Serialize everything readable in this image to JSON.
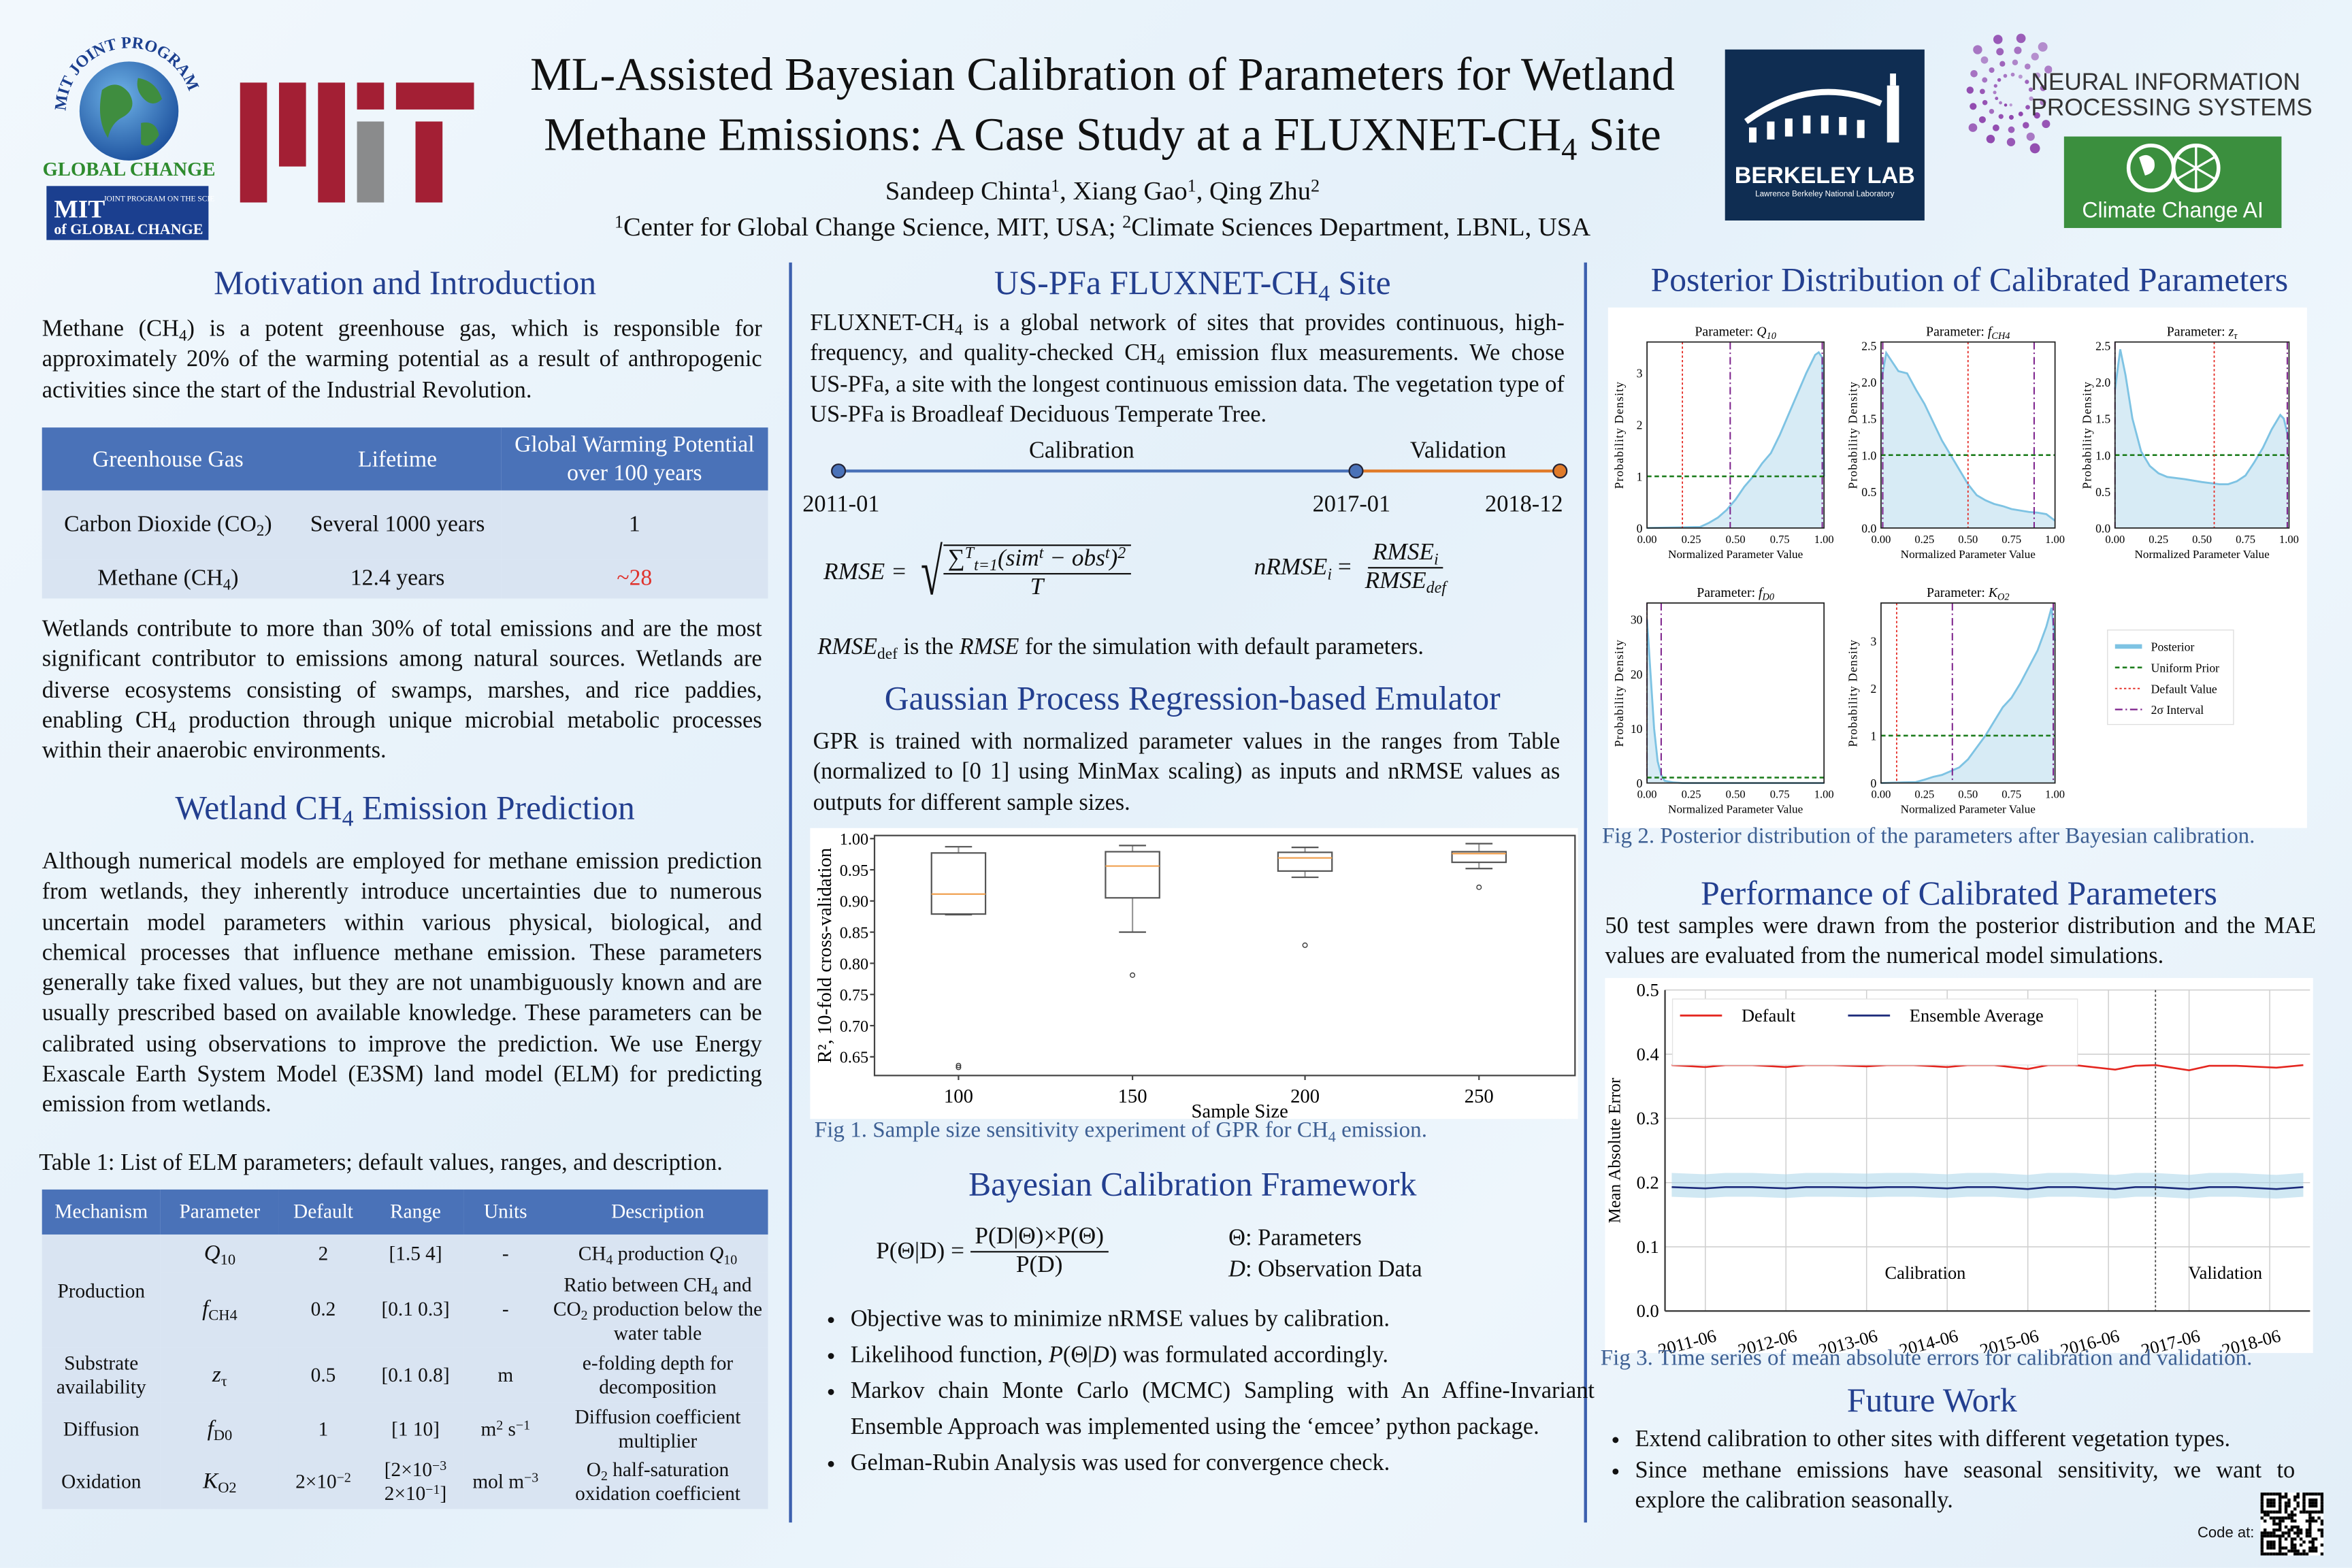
{
  "header": {
    "title_line1": "ML-Assisted Bayesian Calibration of Parameters for Wetland",
    "title_line2_pre": "Methane Emissions: A Case Study at a FLUXNET-CH",
    "title_line2_sub": "4",
    "title_line2_post": " Site",
    "authors": [
      "Sandeep Chinta",
      {
        "sup": "1"
      },
      ", Xiang Gao",
      {
        "sup": "1"
      },
      ", Qing Zhu",
      {
        "sup": "2"
      }
    ],
    "affiliations": [
      {
        "sup": "1"
      },
      "Center for Global Change Science, MIT, USA; ",
      {
        "sup": "2"
      },
      "Climate  Sciences Department, LBNL, USA"
    ],
    "logos": {
      "mit_joint_program_arc": "MIT JOINT PROGRAM",
      "global_change": "GLOBAL CHANGE",
      "mit_box_small": "JOINT PROGRAM ON THE SCIENCE AND POLICY",
      "mit_box_of": "of GLOBAL CHANGE",
      "mit_box_mit": "MIT",
      "berkeley_lab": "BERKELEY LAB",
      "berkeley_sub": "Lawrence Berkeley National Laboratory",
      "neurips_line1": "NEURAL INFORMATION",
      "neurips_line2": "PROCESSING SYSTEMS",
      "climate_change_ai": "Climate Change AI"
    },
    "colors": {
      "mit_red": "#a31f34",
      "mit_grey": "#8a8b8c",
      "berkeley_navy": "#0f2d52",
      "cca_green": "#3b8f3e",
      "neurips_purple": "#8e44ad"
    }
  },
  "motivation": {
    "heading": "Motivation and Introduction",
    "para1": [
      "Methane (CH",
      {
        "sub": "4"
      },
      ") is a potent greenhouse gas, which is responsible for approximately 20% of the warming potential as a result of anthropogenic activities since the start of the Industrial Revolution."
    ],
    "ghg_table": {
      "headers": [
        "Greenhouse Gas",
        "Lifetime",
        "Global Warming Potential over 100 years"
      ],
      "rows": [
        {
          "gas": [
            "Carbon Dioxide (CO",
            {
              "sub": "2"
            },
            ")"
          ],
          "lifetime": "Several 1000 years",
          "gwp": "1"
        },
        {
          "gas": [
            "Methane (CH",
            {
              "sub": "4"
            },
            ")"
          ],
          "lifetime": "12.4 years",
          "gwp": "~28"
        }
      ],
      "highlight_color": "#e0312b"
    },
    "para2": [
      "Wetlands contribute to more than 30% of total emissions and are the most significant contributor to emissions among natural sources. Wetlands are diverse ecosystems consisting of swamps, marshes, and rice paddies, enabling CH",
      {
        "sub": "4"
      },
      " production through unique microbial metabolic processes within their anaerobic environments."
    ]
  },
  "prediction": {
    "heading": [
      "Wetland CH",
      {
        "sub": "4"
      },
      " Emission Prediction"
    ],
    "para": [
      "Although numerical models are employed for methane emission prediction from wetlands, they inherently introduce uncertainties due to numerous uncertain model parameters within various physical, biological, and chemical processes that influence methane emission. These parameters generally take fixed values, but they are not unambiguously known and are usually prescribed based on available knowledge. These parameters can be calibrated using observations to improve the prediction. We use Energy Exascale Earth System Model (E3SM) land model (ELM) for predicting emission from wetlands."
    ],
    "table_caption": "Table 1: List of ELM parameters; default values, ranges, and description.",
    "param_table": {
      "headers": [
        "Mechanism",
        "Parameter",
        "Default",
        "Range",
        "Units",
        "Description"
      ],
      "rows": [
        {
          "mechanism": "Production",
          "param": [
            {
              "i": "Q"
            },
            {
              "sub": "10"
            }
          ],
          "default": [
            "2"
          ],
          "range": [
            "[1.5 4]"
          ],
          "units": [
            "-"
          ],
          "desc": [
            "CH",
            {
              "sub": "4"
            },
            " production ",
            {
              "i": "Q"
            },
            {
              "sub": "10"
            }
          ]
        },
        {
          "mechanism": "",
          "param": [
            {
              "i": "f"
            },
            {
              "sub": "CH"
            },
            {
              "sub": "4"
            }
          ],
          "default": [
            "0.2"
          ],
          "range": [
            "[0.1 0.3]"
          ],
          "units": [
            "-"
          ],
          "desc": [
            "Ratio between CH",
            {
              "sub": "4"
            },
            " and CO",
            {
              "sub": "2"
            },
            " production below the water table"
          ]
        },
        {
          "mechanism": "Substrate availability",
          "param": [
            {
              "i": "z"
            },
            {
              "sub": "τ"
            }
          ],
          "default": [
            "0.5"
          ],
          "range": [
            "[0.1 0.8]"
          ],
          "units": [
            "m"
          ],
          "desc": [
            "e-folding depth for decomposition"
          ]
        },
        {
          "mechanism": "Diffusion",
          "param": [
            {
              "i": "f"
            },
            {
              "sub": "D0"
            }
          ],
          "default": [
            "1"
          ],
          "range": [
            "[1 10]"
          ],
          "units": [
            "m",
            {
              "sup": "2"
            },
            " s",
            {
              "sup": "−1"
            }
          ],
          "desc": [
            "Diffusion coefficient multiplier"
          ]
        },
        {
          "mechanism": "Oxidation",
          "param": [
            {
              "i": "K"
            },
            {
              "sub": "O2"
            }
          ],
          "default": [
            "2×10",
            {
              "sup": "−2"
            }
          ],
          "range": [
            "[2×10",
            {
              "sup": "−3"
            },
            " 2×10",
            {
              "sup": "−1"
            },
            "]"
          ],
          "units": [
            "mol m",
            {
              "sup": "−3"
            }
          ],
          "desc": [
            "O",
            {
              "sub": "2"
            },
            " half-saturation oxidation coefficient"
          ]
        }
      ]
    }
  },
  "site": {
    "heading": [
      "US-PFa FLUXNET-CH",
      {
        "sub": "4"
      },
      " Site"
    ],
    "para": [
      "FLUXNET-CH",
      {
        "sub": "4"
      },
      " is a global network of sites that provides continuous, high-frequency, and quality-checked CH",
      {
        "sub": "4"
      },
      " emission flux measurements. We chose US-PFa, a site with the longest continuous emission data. The vegetation type of US-PFa is Broadleaf Deciduous Temperate Tree."
    ],
    "timeline": {
      "calibration_label": "Calibration",
      "validation_label": "Validation",
      "dates": [
        "2011-01",
        "2017-01",
        "2018-12"
      ],
      "calibration_color": "#4a72b8",
      "validation_color": "#e07b2a"
    },
    "rmse_lhs": "RMSE =",
    "rmse_sum": "∑",
    "rmse_sum_sub": "t=1",
    "rmse_sum_sup": "T",
    "rmse_num": "(sim",
    "rmse_num_sup1": "t",
    "rmse_num_mid": " − obs",
    "rmse_num_sup2": "t",
    "rmse_num_end": ")",
    "rmse_num_sup3": "2",
    "rmse_den": "T",
    "nrmse_lhs": "nRMSE",
    "nrmse_lhs_sub": "i",
    "nrmse_eq": " =",
    "nrmse_num": "RMSE",
    "nrmse_num_sub": "i",
    "nrmse_den": "RMSE",
    "nrmse_den_sub": "def",
    "note": [
      {
        "i": "RMSE"
      },
      {
        "sub": "def"
      },
      " is the ",
      {
        "i": "RMSE"
      },
      " for the simulation with default parameters."
    ]
  },
  "gpr": {
    "heading": "Gaussian Process Regression-based Emulator",
    "para": [
      "GPR is trained with normalized parameter values in the ranges from Table (normalized to [0 1] using MinMax scaling) as inputs and nRMSE values as outputs for different sample sizes."
    ],
    "caption": [
      "Fig 1. Sample size sensitivity experiment of GPR for CH",
      {
        "sub": "4"
      },
      " emission."
    ]
  },
  "bayes": {
    "heading": "Bayesian Calibration Framework",
    "eq_lhs": "P(Θ|D) =",
    "eq_num": "P(D|Θ)×P(Θ)",
    "eq_den": "P(D)",
    "legend_theta": "Θ: Parameters",
    "legend_d_sym": "D",
    "legend_d": ": Observation Data",
    "bullets": [
      [
        "Objective was to minimize nRMSE values by calibration."
      ],
      [
        "Likelihood function, ",
        {
          "i": "P"
        },
        "(Θ|",
        {
          "i": "D"
        },
        ") was formulated accordingly."
      ],
      [
        "Markov chain Monte Carlo (MCMC) Sampling with An Affine-Invariant Ensemble Approach was implemented using the ‘emcee’ python package."
      ],
      [
        "Gelman-Rubin Analysis was used for convergence check."
      ]
    ]
  },
  "posterior": {
    "heading": "Posterior Distribution of Calibrated Parameters",
    "caption": "Fig 2. Posterior distribution of the parameters after Bayesian calibration."
  },
  "performance": {
    "heading": "Performance of Calibrated Parameters",
    "para": [
      "50 test samples were drawn from the posterior distribution and the MAE values are evaluated from the numerical model simulations."
    ],
    "caption": "Fig 3. Time series of mean absolute errors for calibration and validation."
  },
  "future": {
    "heading": "Future Work",
    "bullets": [
      [
        "Extend calibration to other sites with different vegetation types."
      ],
      [
        "Since methane emissions have seasonal sensitivity, we want to explore the calibration seasonally."
      ]
    ],
    "code_label": "Code at:"
  },
  "chart_data": [
    {
      "type": "box",
      "xlabel": "Sample Size",
      "ylabel": "R², 10-fold cross-validation",
      "categories": [
        "100",
        "150",
        "200",
        "250"
      ],
      "ylim": [
        0.62,
        1.005
      ],
      "yticks": [
        "0.65",
        "0.70",
        "0.75",
        "0.80",
        "0.85",
        "0.90",
        "0.95",
        "1.00"
      ],
      "boxes": [
        {
          "whisker_low": 0.878,
          "q1": 0.879,
          "median": 0.911,
          "q3": 0.977,
          "whisker_high": 0.987,
          "outliers": [
            0.636,
            0.633
          ]
        },
        {
          "whisker_low": 0.85,
          "q1": 0.905,
          "median": 0.956,
          "q3": 0.979,
          "whisker_high": 0.989,
          "outliers": [
            0.781
          ]
        },
        {
          "whisker_low": 0.938,
          "q1": 0.948,
          "median": 0.969,
          "q3": 0.978,
          "whisker_high": 0.986,
          "outliers": [
            0.829
          ]
        },
        {
          "whisker_low": 0.952,
          "q1": 0.962,
          "median": 0.976,
          "q3": 0.979,
          "whisker_high": 0.992,
          "outliers": [
            0.922
          ]
        }
      ],
      "median_color": "#f0a050"
    },
    {
      "type": "area",
      "xlabel": "Normalized Parameter Value",
      "ylabel": "Probability Density",
      "xticks": [
        "0.00",
        "0.25",
        "0.50",
        "0.75",
        "1.00"
      ],
      "legend": [
        "Posterior",
        "Uniform Prior",
        "Default Value",
        "2σ Interval"
      ],
      "legend_placement": "right",
      "colors": {
        "posterior": "#7ec3e3",
        "fill": "#d7ebf5",
        "prior": "#1e7d1e",
        "default": "#e4261f",
        "interval": "#7b1f8a"
      },
      "prior_density": 1.0,
      "panels": [
        {
          "title": "Parameter:",
          "symbol": "Q",
          "sub": "10",
          "ylim": [
            0,
            3.6
          ],
          "yticks": [
            "0",
            "1",
            "2",
            "3"
          ],
          "default": 0.2,
          "interval": [
            0.47,
            0.99
          ],
          "x": [
            0,
            0.3,
            0.35,
            0.4,
            0.45,
            0.5,
            0.55,
            0.6,
            0.65,
            0.7,
            0.75,
            0.8,
            0.85,
            0.9,
            0.95,
            0.97,
            0.99,
            1.0
          ],
          "y": [
            0,
            0.02,
            0.1,
            0.2,
            0.35,
            0.55,
            0.8,
            1.0,
            1.25,
            1.45,
            1.8,
            2.2,
            2.6,
            3.0,
            3.35,
            3.4,
            3.3,
            1.0
          ]
        },
        {
          "title": "Parameter:",
          "symbol": "f",
          "sub": "CH4",
          "ylim": [
            0,
            2.55
          ],
          "yticks": [
            "0.0",
            "0.5",
            "1.0",
            "1.5",
            "2.0",
            "2.5"
          ],
          "default": 0.5,
          "interval": [
            0.01,
            0.88
          ],
          "x": [
            0,
            0.03,
            0.1,
            0.15,
            0.2,
            0.25,
            0.3,
            0.35,
            0.4,
            0.45,
            0.5,
            0.55,
            0.6,
            0.65,
            0.7,
            0.75,
            0.8,
            0.85,
            0.9,
            0.95,
            1.0
          ],
          "y": [
            2.0,
            2.4,
            2.15,
            2.12,
            1.9,
            1.7,
            1.45,
            1.2,
            1.0,
            0.8,
            0.6,
            0.45,
            0.38,
            0.33,
            0.3,
            0.26,
            0.24,
            0.22,
            0.21,
            0.19,
            0.1
          ]
        },
        {
          "title": "Parameter:",
          "symbol": "z",
          "sub": "τ",
          "ylim": [
            0,
            2.55
          ],
          "yticks": [
            "0.0",
            "0.5",
            "1.0",
            "1.5",
            "2.0",
            "2.5"
          ],
          "default": 0.57,
          "interval": [
            0.0,
            0.99
          ],
          "x": [
            0,
            0.03,
            0.06,
            0.1,
            0.15,
            0.2,
            0.25,
            0.3,
            0.4,
            0.5,
            0.6,
            0.65,
            0.7,
            0.75,
            0.8,
            0.85,
            0.9,
            0.95,
            0.97,
            1.0
          ],
          "y": [
            1.9,
            2.45,
            2.1,
            1.5,
            1.05,
            0.85,
            0.75,
            0.7,
            0.67,
            0.63,
            0.6,
            0.6,
            0.64,
            0.72,
            0.9,
            1.1,
            1.35,
            1.55,
            1.5,
            1.2
          ]
        },
        {
          "title": "Parameter:",
          "symbol": "f",
          "sub": "D0",
          "ylim": [
            0,
            33
          ],
          "yticks": [
            "0",
            "10",
            "20",
            "30"
          ],
          "default": 0.0,
          "interval": [
            0.0,
            0.08
          ],
          "x": [
            0,
            0.02,
            0.04,
            0.06,
            0.08,
            0.1,
            0.15,
            0.2,
            1.0
          ],
          "y": [
            30,
            20,
            10,
            4,
            1.5,
            0.4,
            0.1,
            0,
            0
          ]
        },
        {
          "title": "Parameter:",
          "symbol": "K",
          "sub": "O2",
          "ylim": [
            0,
            3.8
          ],
          "yticks": [
            "0",
            "1",
            "2",
            "3"
          ],
          "default": 0.09,
          "interval": [
            0.41,
            0.99
          ],
          "x": [
            0,
            0.2,
            0.25,
            0.3,
            0.35,
            0.4,
            0.45,
            0.5,
            0.55,
            0.6,
            0.65,
            0.7,
            0.75,
            0.8,
            0.85,
            0.9,
            0.95,
            0.98,
            1.0
          ],
          "y": [
            0,
            0.02,
            0.07,
            0.13,
            0.17,
            0.25,
            0.33,
            0.5,
            0.75,
            1.0,
            1.3,
            1.6,
            1.8,
            2.1,
            2.45,
            2.8,
            3.3,
            3.7,
            3.0
          ]
        }
      ]
    },
    {
      "type": "line",
      "ylabel": "Mean Absolute Error",
      "ylim": [
        0.0,
        0.5
      ],
      "yticks": [
        "0.0",
        "0.1",
        "0.2",
        "0.3",
        "0.4",
        "0.5"
      ],
      "xlim": [
        "2010-12",
        "2018-12"
      ],
      "xticks": [
        "2011-06",
        "2012-06",
        "2013-06",
        "2014-06",
        "2015-06",
        "2016-06",
        "2017-06",
        "2018-06"
      ],
      "grid": true,
      "legend_placement": "top-left",
      "split_date": "2017-01",
      "region_labels": [
        "Calibration",
        "Validation"
      ],
      "x": [
        "2011-01",
        "2011-06",
        "2011-09",
        "2012-01",
        "2012-06",
        "2012-09",
        "2013-01",
        "2013-06",
        "2013-09",
        "2014-01",
        "2014-06",
        "2014-09",
        "2015-01",
        "2015-06",
        "2015-09",
        "2016-01",
        "2016-07",
        "2016-10",
        "2017-01",
        "2017-06",
        "2017-09",
        "2018-01",
        "2018-07",
        "2018-11"
      ],
      "series": [
        {
          "name": "Default",
          "color": "#e4261f",
          "values": [
            0.383,
            0.38,
            0.383,
            0.383,
            0.38,
            0.383,
            0.383,
            0.381,
            0.383,
            0.383,
            0.38,
            0.383,
            0.383,
            0.377,
            0.383,
            0.383,
            0.376,
            0.382,
            0.383,
            0.375,
            0.382,
            0.382,
            0.379,
            0.383
          ]
        },
        {
          "name": "Ensemble Average",
          "color": "#1c2a7a",
          "values": [
            0.193,
            0.191,
            0.193,
            0.193,
            0.191,
            0.193,
            0.193,
            0.192,
            0.193,
            0.193,
            0.191,
            0.193,
            0.193,
            0.19,
            0.193,
            0.193,
            0.19,
            0.193,
            0.193,
            0.19,
            0.193,
            0.193,
            0.19,
            0.193
          ]
        }
      ],
      "ensemble_band": {
        "lower": 0.178,
        "upper": 0.215,
        "color": "#a9d5ea"
      }
    }
  ]
}
